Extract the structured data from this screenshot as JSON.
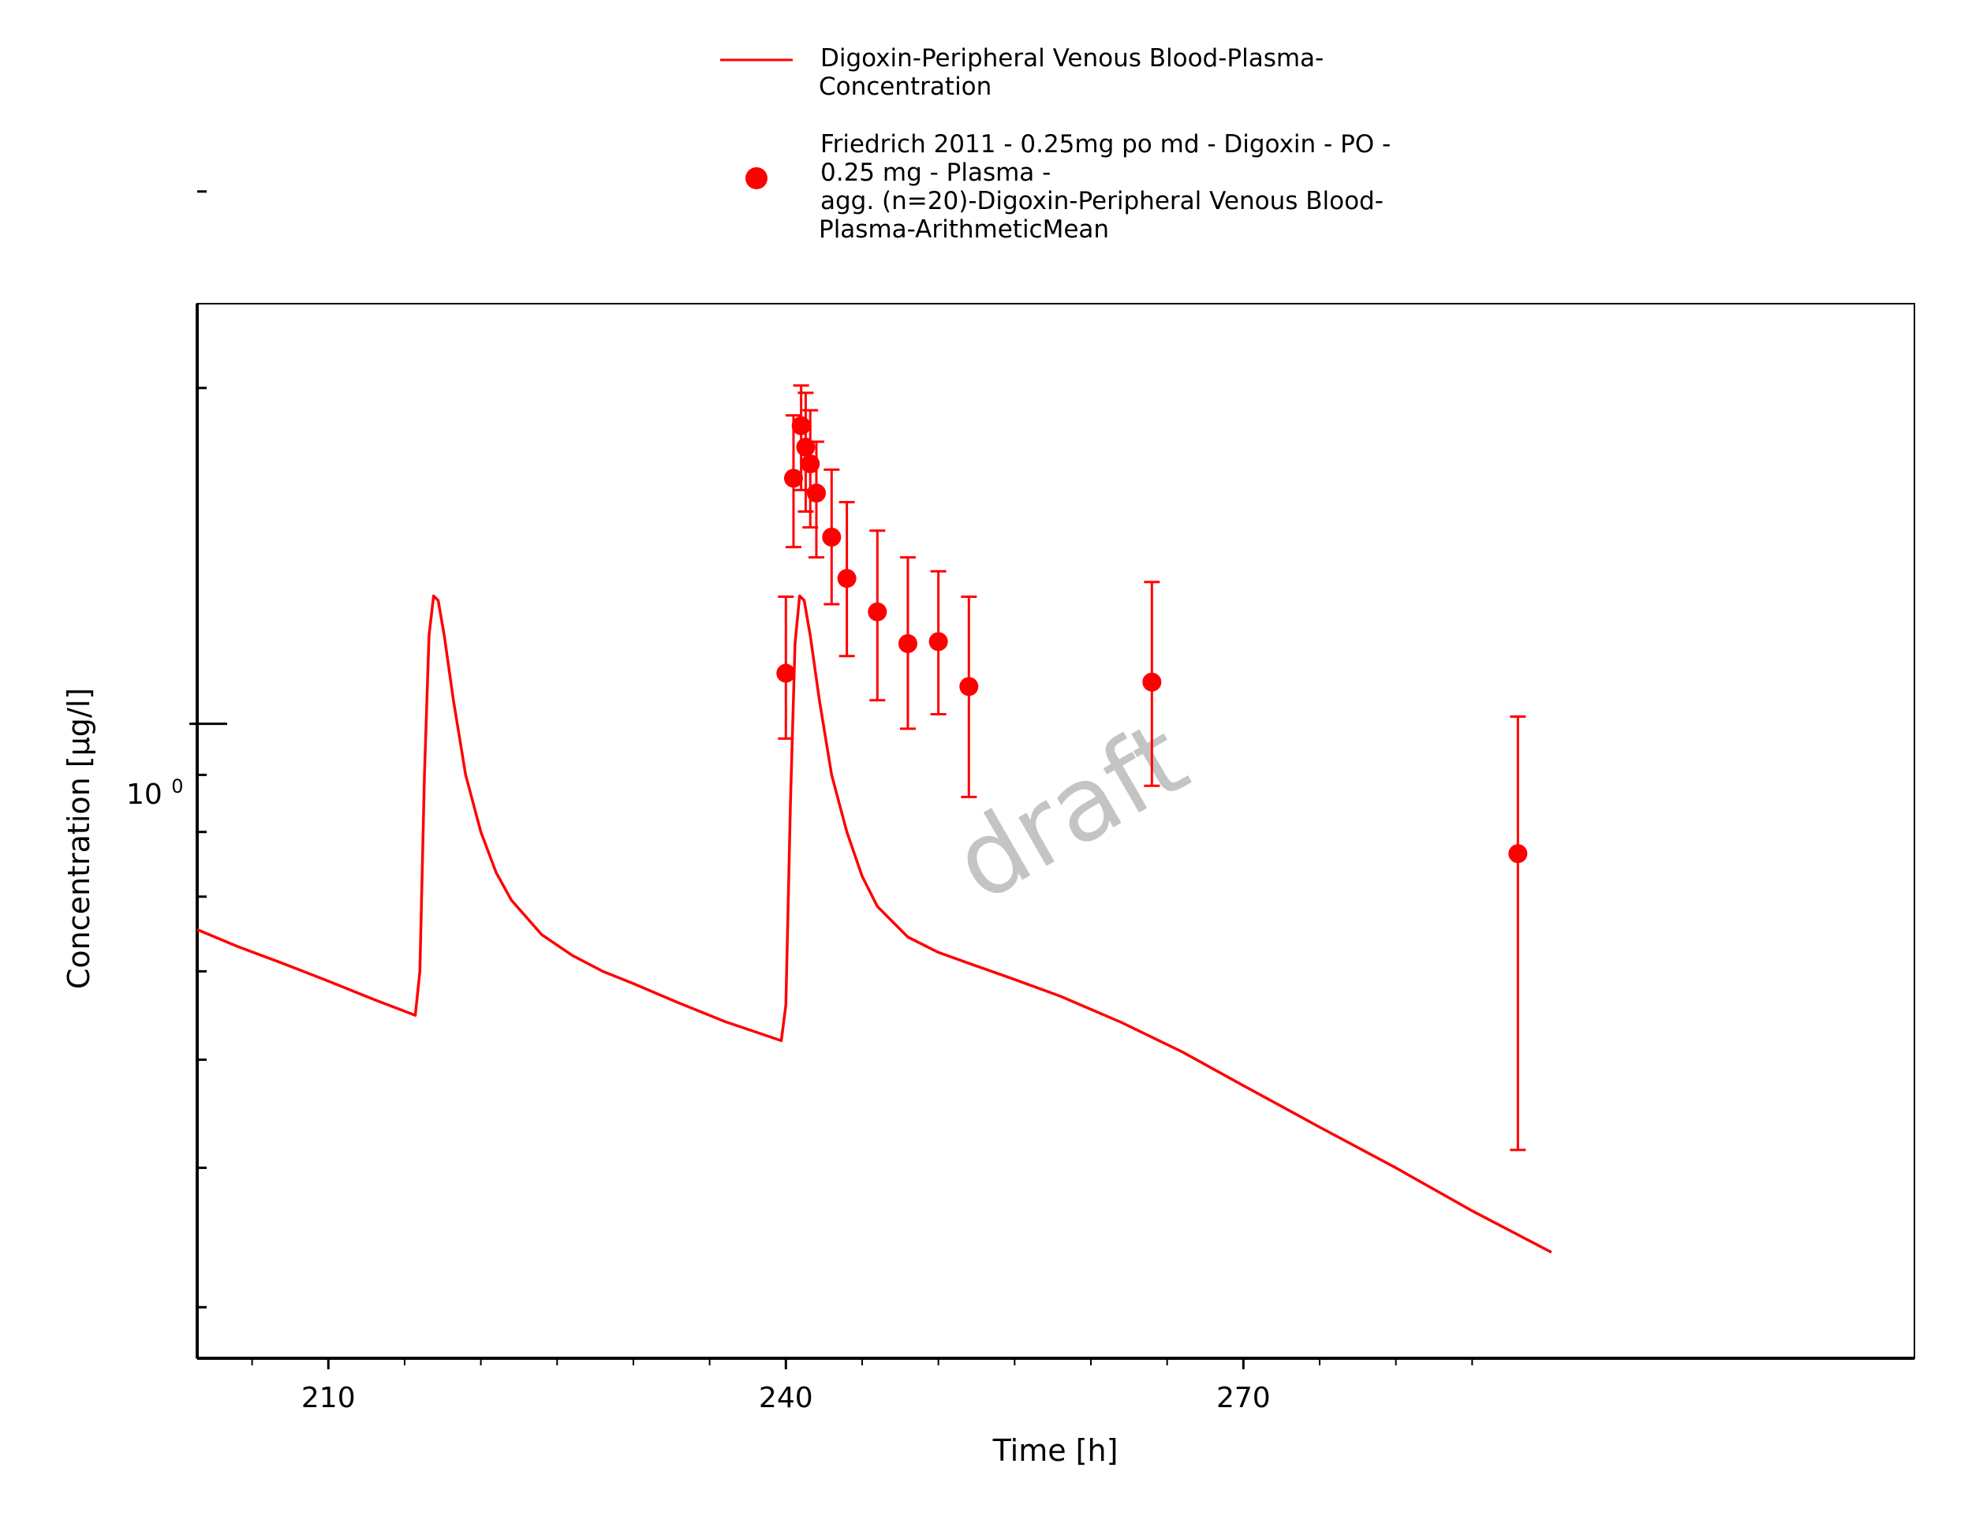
{
  "chart_data": {
    "type": "line",
    "xlabel": "Time [h]",
    "ylabel": "Concentration [µg/l]",
    "x_scale": "linear",
    "y_scale": "log",
    "xlim": [
      201.4,
      314.0
    ],
    "ylim": [
      0.27,
      2.38
    ],
    "x_ticks": [
      210,
      240,
      270
    ],
    "y_tick_labels": [
      {
        "base": "10",
        "exp": "0"
      }
    ],
    "legend": {
      "position": "top-center",
      "entries": [
        {
          "lines": [
            "Digoxin-Peripheral Venous Blood-Plasma-",
            "Concentration"
          ]
        },
        {
          "lines": [
            "Friedrich 2011 - 0.25mg po md - Digoxin - PO -",
            "0.25 mg - Plasma -",
            "agg. (n=20)-Digoxin-Peripheral Venous Blood-",
            "Plasma-ArithmeticMean"
          ]
        }
      ]
    },
    "watermark": "draft",
    "colors": {
      "series": "#ff0000",
      "axis": "#000000",
      "watermark": "#c4c4c4"
    },
    "series": [
      {
        "kind": "line",
        "x": [
          201.4,
          204,
          207,
          210,
          213,
          215.7,
          216.0,
          216.3,
          216.6,
          216.9,
          217.2,
          217.6,
          218.2,
          219,
          220,
          221,
          222,
          224,
          226,
          228,
          230,
          233,
          236,
          239.7,
          240.0,
          240.3,
          240.6,
          240.9,
          241.2,
          241.6,
          242.2,
          243,
          244,
          245,
          246,
          248,
          250,
          252,
          255,
          258,
          262,
          266,
          270,
          275,
          280,
          285,
          290.2
        ],
        "y": [
          0.654,
          0.632,
          0.61,
          0.588,
          0.566,
          0.548,
          0.6,
          0.9,
          1.2,
          1.302,
          1.29,
          1.2,
          1.05,
          0.9,
          0.8,
          0.736,
          0.695,
          0.647,
          0.62,
          0.6,
          0.585,
          0.562,
          0.541,
          0.52,
          0.56,
          0.85,
          1.18,
          1.302,
          1.29,
          1.2,
          1.05,
          0.9,
          0.8,
          0.73,
          0.686,
          0.644,
          0.624,
          0.61,
          0.59,
          0.57,
          0.54,
          0.508,
          0.474,
          0.435,
          0.4,
          0.366,
          0.336
        ]
      },
      {
        "kind": "scatter",
        "x": [
          240.0,
          240.5,
          241.0,
          241.3,
          241.6,
          242.0,
          243.0,
          244.0,
          246.0,
          248.0,
          250.0,
          252.0,
          264.0,
          288.0
        ],
        "y": [
          1.11,
          1.66,
          1.85,
          1.77,
          1.71,
          1.61,
          1.47,
          1.35,
          1.26,
          1.18,
          1.185,
          1.08,
          1.09,
          0.765
        ],
        "err_low": [
          0.97,
          1.44,
          1.62,
          1.55,
          1.5,
          1.41,
          1.28,
          1.15,
          1.05,
          0.99,
          1.02,
          0.86,
          0.88,
          0.415
        ],
        "err_high": [
          1.3,
          1.89,
          2.01,
          1.98,
          1.91,
          1.79,
          1.69,
          1.58,
          1.49,
          1.41,
          1.37,
          1.3,
          1.34,
          1.015
        ]
      }
    ]
  }
}
